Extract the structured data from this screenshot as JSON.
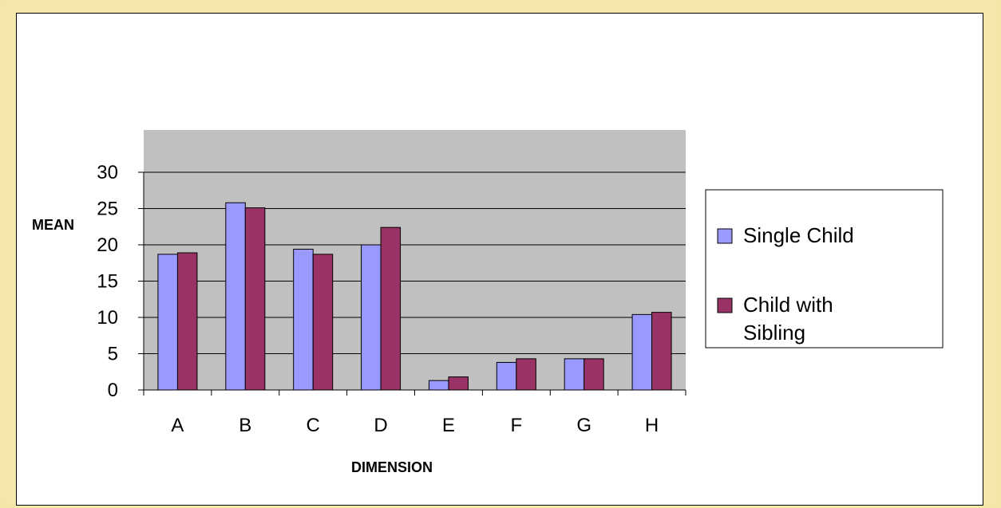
{
  "chart_data": {
    "type": "bar",
    "title": "",
    "xlabel": "DIMENSION",
    "ylabel": "MEAN",
    "categories": [
      "A",
      "B",
      "C",
      "D",
      "E",
      "F",
      "G",
      "H"
    ],
    "series": [
      {
        "name": "Single Child",
        "values": [
          18.7,
          25.8,
          19.4,
          20.0,
          1.3,
          3.8,
          4.3,
          10.4
        ]
      },
      {
        "name": "Child with Sibling",
        "values": [
          18.9,
          25.1,
          18.7,
          22.4,
          1.8,
          4.3,
          4.3,
          10.7
        ]
      }
    ],
    "ylim": [
      0,
      30
    ],
    "yticks": [
      0,
      5,
      10,
      15,
      20,
      25,
      30
    ],
    "grid": true,
    "legend": "right",
    "colors": {
      "series": [
        "#9999ff",
        "#993366"
      ],
      "plot_background": "#c0c0c0",
      "gridline": "#000000"
    },
    "legend_lines": [
      [
        "Single Child"
      ],
      [
        "Child with",
        "Sibling"
      ]
    ]
  }
}
